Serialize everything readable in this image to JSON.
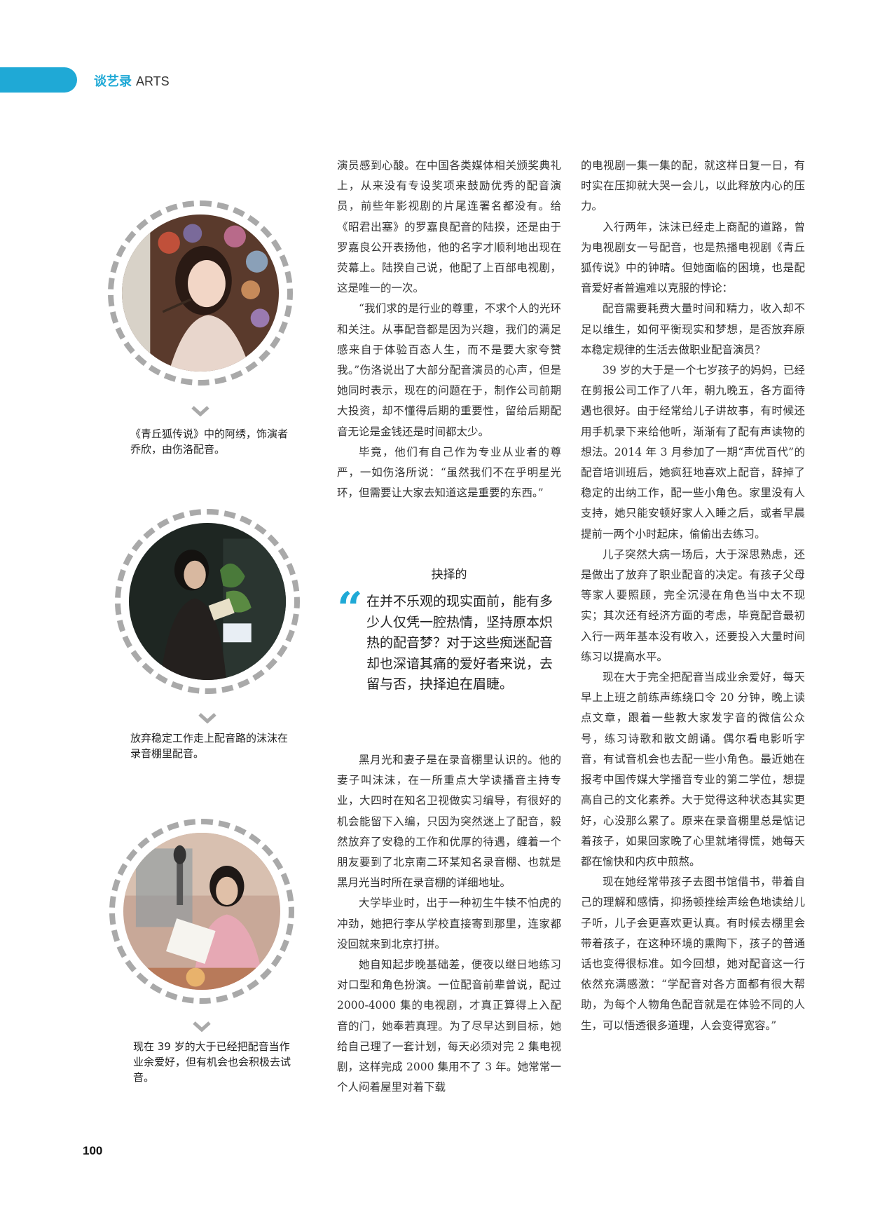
{
  "header": {
    "section_cn": "谈艺录",
    "section_en": "ARTS"
  },
  "captions": [
    "《青丘狐传说》中的阿绣，饰演者乔欣，由伤洛配音。",
    "放弃稳定工作走上配音路的沫沫在录音棚里配音。",
    "现在 39 岁的大于已经把配音当作业余爱好，但有机会也会积极去试音。"
  ],
  "column1": {
    "paragraphs_top": [
      "演员感到心酸。在中国各类媒体相关颁奖典礼上，从来没有专设奖项来鼓励优秀的配音演员，前些年影视剧的片尾连署名都没有。给《昭君出塞》的罗嘉良配音的陆揆，还是由于罗嘉良公开表扬他，他的名字才顺利地出现在荧幕上。陆揆自己说，他配了上百部电视剧，这是唯一的一次。",
      "“我们求的是行业的尊重，不求个人的光环和关注。从事配音都是因为兴趣，我们的满足感来自于体验百态人生，而不是要大家夸赞我。”伤洛说出了大部分配音演员的心声，但是她同时表示，现在的问题在于，制作公司前期大投资，却不懂得后期的重要性，留给后期配音无论是金钱还是时间都太少。",
      "毕竟，他们有自己作为专业从业者的尊严，一如伤洛所说：“虽然我们不在乎明星光环，但需要让大家去知道这是重要的东西。”"
    ],
    "section_title": "抉择的",
    "pull_quote": "在并不乐观的现实面前，能有多少人仅凭一腔热情，坚持原本炽热的配音梦？对于这些痴迷配音却也深谙其痛的爱好者来说，去留与否，抉择迫在眉睫。",
    "paragraphs_bottom": [
      "黑月光和妻子是在录音棚里认识的。他的妻子叫沫沫，在一所重点大学读播音主持专业，大四时在知名卫视做实习编导，有很好的机会能留下入编，只因为突然迷上了配音，毅然放弃了安稳的工作和优厚的待遇，缠着一个朋友要到了北京南二环某知名录音棚、也就是黑月光当时所在录音棚的详细地址。",
      "大学毕业时，出于一种初生牛犊不怕虎的冲劲，她把行李从学校直接寄到那里，连家都没回就来到北京打拼。",
      "她自知起步晚基础差，便夜以继日地练习对口型和角色扮演。一位配音前辈曾说，配过 2000-4000 集的电视剧，才真正算得上入配音的门，她奉若真理。为了尽早达到目标，她给自己理了一套计划，每天必须对完 2 集电视剧，这样完成 2000 集用不了 3 年。她常常一个人闷着屋里对着下载"
    ]
  },
  "column2": {
    "paragraphs": [
      "的电视剧一集一集的配，就这样日复一日，有时实在压抑就大哭一会儿，以此释放内心的压力。",
      "入行两年，沫沫已经走上商配的道路，曾为电视剧女一号配音，也是热播电视剧《青丘狐传说》中的钟晴。但她面临的困境，也是配音爱好者普遍难以克服的悖论：",
      "配音需要耗费大量时间和精力，收入却不足以维生，如何平衡现实和梦想，是否放弃原本稳定规律的生活去做职业配音演员？",
      "39 岁的大于是一个七岁孩子的妈妈，已经在剪报公司工作了八年，朝九晚五，各方面待遇也很好。由于经常给儿子讲故事，有时候还用手机录下来给他听，渐渐有了配有声读物的想法。2014 年 3 月参加了一期“声优百代”的配音培训班后，她疯狂地喜欢上配音，辞掉了稳定的出纳工作，配一些小角色。家里没有人支持，她只能安顿好家人入睡之后，或者早晨提前一两个小时起床，偷偷出去练习。",
      "儿子突然大病一场后，大于深思熟虑，还是做出了放弃了职业配音的决定。有孩子父母等家人要照顾，完全沉浸在角色当中太不现实；其次还有经济方面的考虑，毕竟配音最初入行一两年基本没有收入，还要投入大量时间练习以提高水平。",
      "现在大于完全把配音当成业余爱好，每天早上上班之前练声练绕口令 20 分钟，晚上读点文章，跟着一些教大家发字音的微信公众号，练习诗歌和散文朗诵。偶尔看电影听字音，有试音机会也去配一些小角色。最近她在报考中国传媒大学播音专业的第二学位，想提高自己的文化素养。大于觉得这种状态其实更好，心没那么累了。原来在录音棚里总是惦记着孩子，如果回家晚了心里就堵得慌，她每天都在愉快和内疚中煎熬。",
      "现在她经常带孩子去图书馆借书，带着自己的理解和感情，抑扬顿挫绘声绘色地读给儿子听，儿子会更喜欢更认真。有时候去棚里会带着孩子，在这种环境的熏陶下，孩子的普通话也变得很标准。如今回想，她对配音这一行依然充满感激：“学配音对各方面都有很大帮助，为每个人物角色配音就是在体验不同的人生，可以悟透很多道理，人会变得宽容。”"
    ]
  },
  "page_number": "100",
  "colors": {
    "accent": "#1fa9d6",
    "ring": "#a9a9a9"
  }
}
